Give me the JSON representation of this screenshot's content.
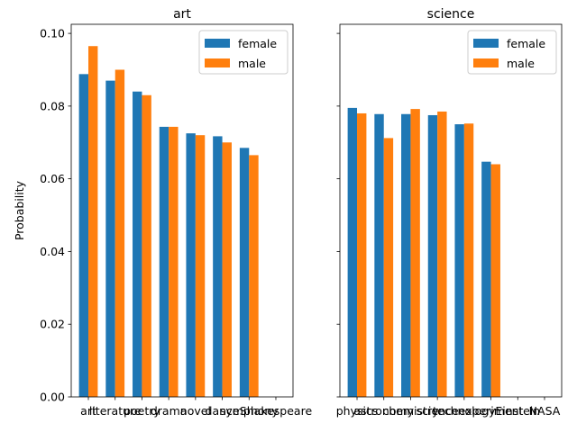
{
  "chart_data": [
    {
      "type": "bar",
      "title": "art",
      "xlabel": "",
      "ylabel": "Probability",
      "ylim": [
        0,
        0.1025
      ],
      "yticks": [
        "0.00",
        "0.02",
        "0.04",
        "0.06",
        "0.08",
        "0.10"
      ],
      "categories": [
        "art",
        "literature",
        "poetry",
        "drama",
        "novel",
        "dance",
        "symphony",
        "Shakespeare"
      ],
      "series": [
        {
          "name": "female",
          "color": "#1f77b4",
          "values": [
            0.0888,
            0.087,
            0.084,
            0.0743,
            0.0725,
            0.0717,
            0.0685,
            0
          ]
        },
        {
          "name": "male",
          "color": "#ff7f0e",
          "values": [
            0.0965,
            0.09,
            0.083,
            0.0743,
            0.072,
            0.07,
            0.0665,
            0
          ]
        }
      ],
      "legend": "upper-right",
      "grid": false
    },
    {
      "type": "bar",
      "title": "science",
      "xlabel": "",
      "ylabel": "",
      "ylim": [
        0,
        0.1025
      ],
      "categories": [
        "physics",
        "astronomy",
        "chemistry",
        "science",
        "technology",
        "experiment",
        "Einstein",
        "NASA"
      ],
      "series": [
        {
          "name": "female",
          "color": "#1f77b4",
          "values": [
            0.0795,
            0.0778,
            0.0778,
            0.0775,
            0.075,
            0.0647,
            0,
            0
          ]
        },
        {
          "name": "male",
          "color": "#ff7f0e",
          "values": [
            0.078,
            0.0712,
            0.0792,
            0.0785,
            0.0752,
            0.064,
            0,
            0
          ]
        }
      ],
      "legend": "upper-right",
      "grid": false
    }
  ]
}
